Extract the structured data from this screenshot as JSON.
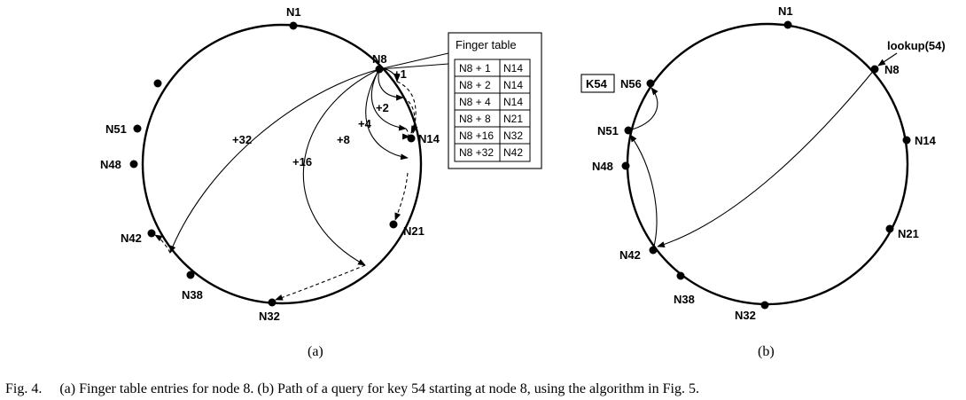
{
  "diagram_a": {
    "subfigure_label": "(a)",
    "nodes": [
      "N1",
      "N8",
      "N14",
      "N21",
      "N32",
      "N38",
      "N42",
      "N48",
      "N51"
    ],
    "finger_labels": [
      "+1",
      "+2",
      "+4",
      "+8",
      "+16",
      "+32"
    ],
    "finger_table": {
      "title": "Finger table",
      "rows": [
        [
          "N8 + 1",
          "N14"
        ],
        [
          "N8 + 2",
          "N14"
        ],
        [
          "N8 + 4",
          "N14"
        ],
        [
          "N8 + 8",
          "N21"
        ],
        [
          "N8 +16",
          "N32"
        ],
        [
          "N8 +32",
          "N42"
        ]
      ]
    }
  },
  "diagram_b": {
    "subfigure_label": "(b)",
    "nodes": [
      "N1",
      "N8",
      "N14",
      "N21",
      "N32",
      "N38",
      "N42",
      "N48",
      "N51",
      "N56"
    ],
    "key_box": "K54",
    "lookup_label": "lookup(54)"
  },
  "caption": "Fig. 4.  (a) Finger table entries for node 8. (b) Path of a query for key 54 starting at node 8, using the algorithm in Fig. 5."
}
